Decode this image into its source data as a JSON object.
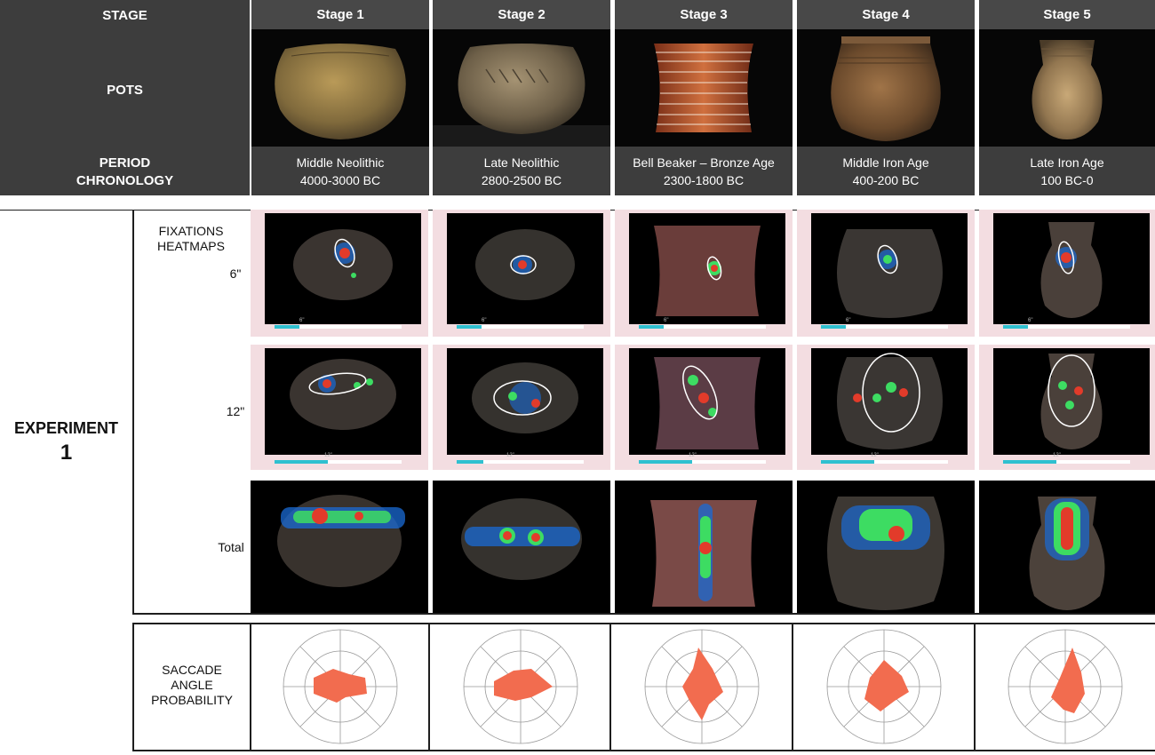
{
  "header": {
    "stage_label": "STAGE",
    "pots_label": "POTS",
    "period_label_1": "PERIOD",
    "period_label_2": "CHRONOLOGY"
  },
  "stages": [
    {
      "title": "Stage 1",
      "period": "Middle Neolithic",
      "chronology": "4000-3000 BC"
    },
    {
      "title": "Stage 2",
      "period": "Late Neolithic",
      "chronology": "2800-2500 BC"
    },
    {
      "title": "Stage 3",
      "period": "Bell Beaker – Bronze Age",
      "chronology": "2300-1800 BC"
    },
    {
      "title": "Stage 4",
      "period": "Middle Iron Age",
      "chronology": "400-200 BC"
    },
    {
      "title": "Stage 5",
      "period": "Late Iron Age",
      "chronology": "100 BC-0"
    }
  ],
  "experiment": {
    "title_line1": "EXPERIMENT",
    "title_line2": "1",
    "heatmaps_label_1": "FIXATIONS",
    "heatmaps_label_2": "HEATMAPS",
    "row_6": "6\"",
    "row_12": "12\"",
    "row_total": "Total",
    "bar_tick_6": "6\"",
    "bar_tick_12": "12\""
  },
  "saccade": {
    "label_1": "SACCADE",
    "label_2": "ANGLE",
    "label_3": "PROBABILITY"
  },
  "colors": {
    "header_bg": "#3d3d3d",
    "stage_title_bg": "#484848",
    "heatmap_cell_bg": "#f3dde1",
    "progress_fill": "#2fc0d0",
    "rose_fill": "#f26c4f"
  }
}
